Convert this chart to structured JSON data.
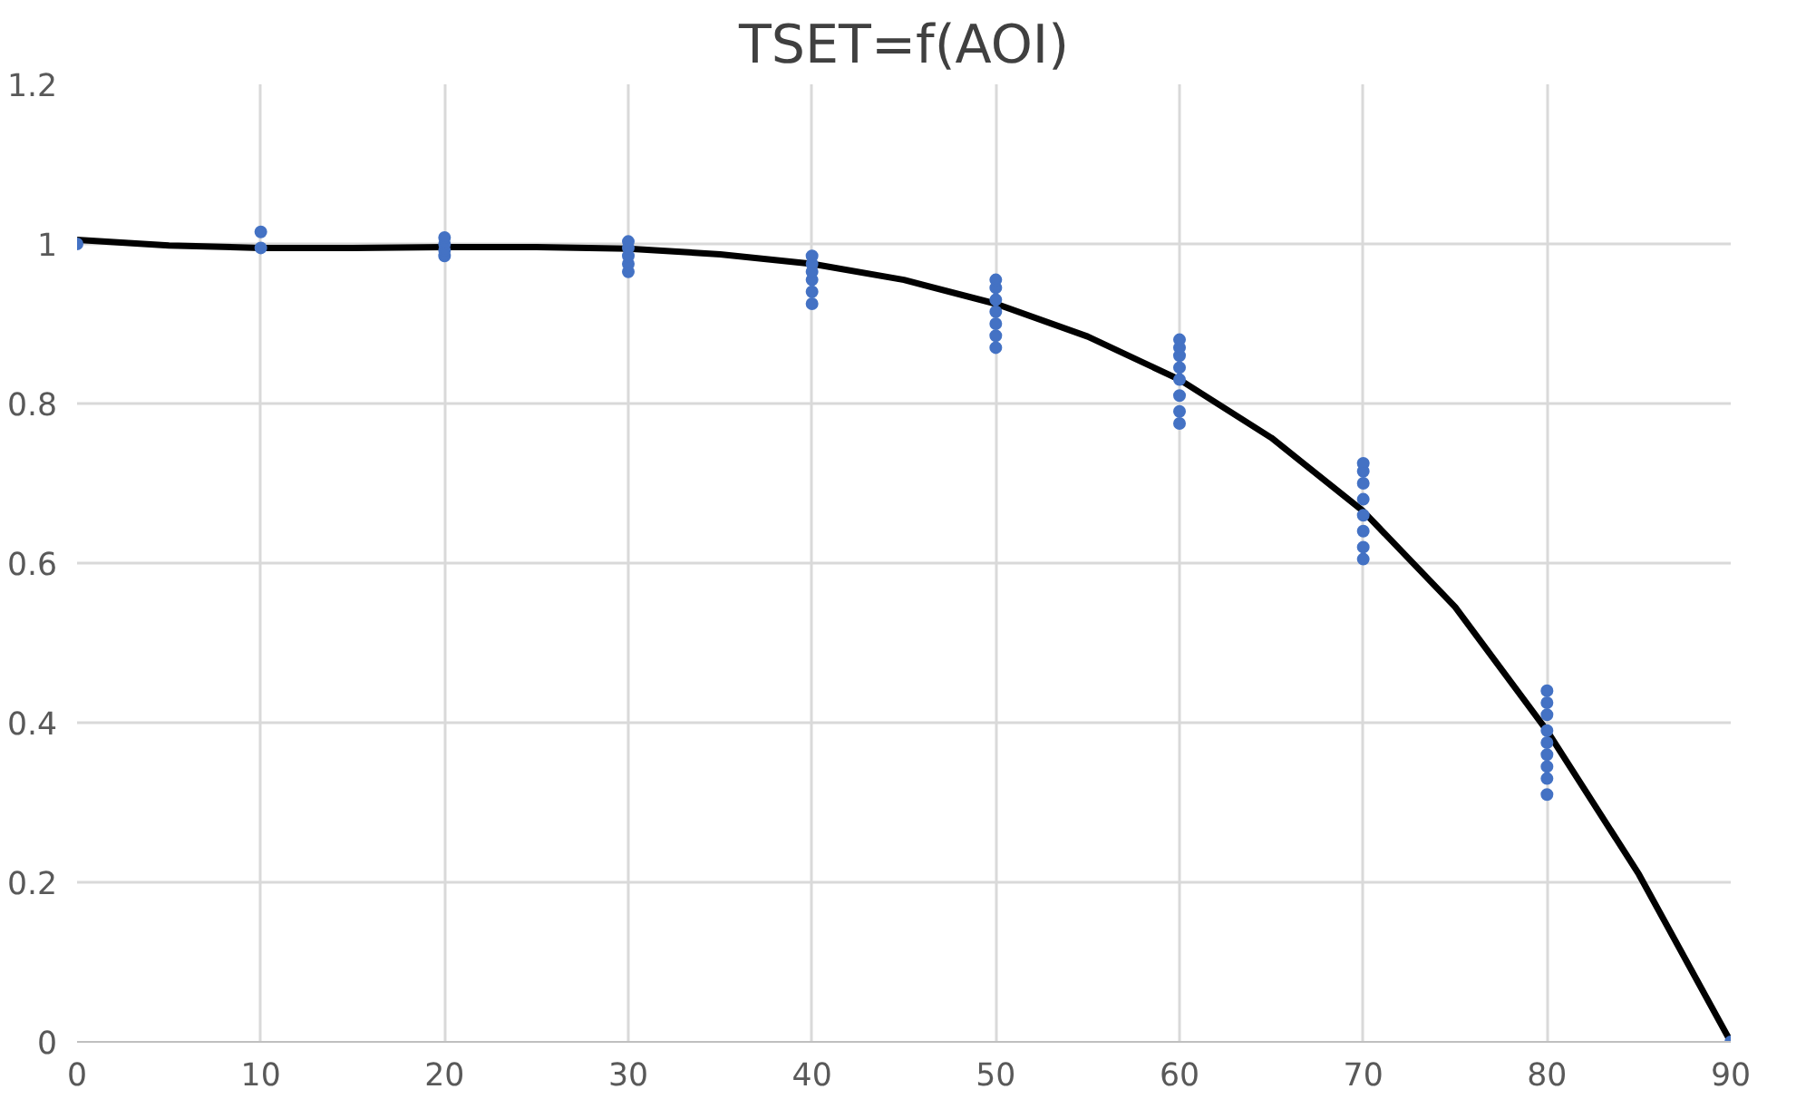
{
  "chart_data": {
    "type": "scatter",
    "title": "TSET=f(AOI)",
    "xlim": [
      0,
      90
    ],
    "xticks": [
      0,
      10,
      20,
      30,
      40,
      50,
      60,
      70,
      80,
      90
    ],
    "ylim": [
      0,
      1.2
    ],
    "yticks": [
      0,
      0.2,
      0.4,
      0.6,
      0.8,
      1,
      1.2
    ],
    "grid": true,
    "marker": "circle",
    "series": [
      {
        "color": "#4472c4",
        "x": [
          0,
          10,
          10,
          20,
          20,
          20,
          20,
          30,
          30,
          30,
          30,
          30,
          40,
          40,
          40,
          40,
          40,
          40,
          50,
          50,
          50,
          50,
          50,
          50,
          50,
          60,
          60,
          60,
          60,
          60,
          60,
          60,
          60,
          70,
          70,
          70,
          70,
          70,
          70,
          70,
          70,
          80,
          80,
          80,
          80,
          80,
          80,
          80,
          80,
          80,
          90
        ],
        "values": [
          1.0,
          0.995,
          1.015,
          0.985,
          0.992,
          1.0,
          1.008,
          0.965,
          0.975,
          0.985,
          0.995,
          1.003,
          0.925,
          0.94,
          0.955,
          0.965,
          0.975,
          0.985,
          0.87,
          0.885,
          0.9,
          0.915,
          0.93,
          0.945,
          0.955,
          0.775,
          0.79,
          0.81,
          0.83,
          0.845,
          0.86,
          0.87,
          0.88,
          0.605,
          0.62,
          0.64,
          0.66,
          0.68,
          0.7,
          0.715,
          0.725,
          0.31,
          0.33,
          0.345,
          0.36,
          0.375,
          0.39,
          0.41,
          0.425,
          0.44,
          0.0
        ]
      },
      {
        "type": "line",
        "color": "#000000",
        "marker": "none",
        "line_style": "solid",
        "x": [
          0,
          5,
          10,
          15,
          20,
          25,
          30,
          35,
          40,
          45,
          50,
          55,
          60,
          65,
          70,
          75,
          80,
          85,
          90
        ],
        "values": [
          1.005,
          0.998,
          0.995,
          0.995,
          0.996,
          0.996,
          0.994,
          0.987,
          0.975,
          0.955,
          0.925,
          0.884,
          0.83,
          0.757,
          0.665,
          0.545,
          0.39,
          0.21,
          0.0
        ]
      }
    ]
  }
}
